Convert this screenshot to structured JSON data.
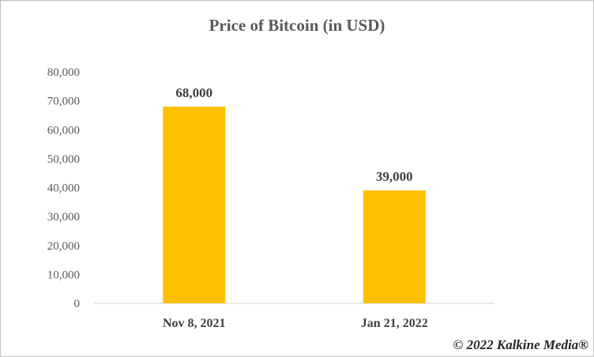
{
  "chart_data": {
    "type": "bar",
    "title": "Price of Bitcoin (in USD)",
    "categories": [
      "Nov 8, 2021",
      "Jan 21, 2022"
    ],
    "values": [
      68000,
      39000
    ],
    "data_labels": [
      "68,000",
      "39,000"
    ],
    "y_ticks": [
      "0",
      "10,000",
      "20,000",
      "30,000",
      "40,000",
      "50,000",
      "60,000",
      "70,000",
      "80,000"
    ],
    "xlabel": "",
    "ylabel": "",
    "ylim": [
      0,
      80000
    ],
    "grid": false,
    "legend": "none",
    "bar_color": "#FFC000"
  },
  "watermark": "© 2022 Kalkine Media®"
}
